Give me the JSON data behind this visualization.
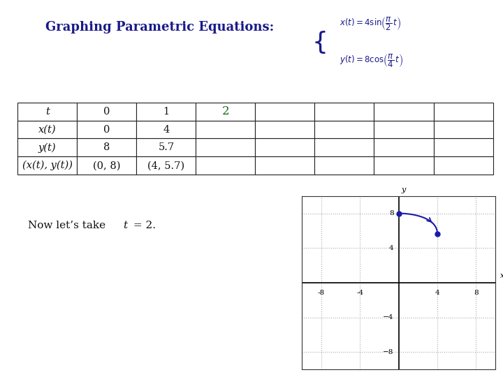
{
  "title": "Graphing Parametric Equations:",
  "title_color": "#1a1a8a",
  "background_color": "#ffffff",
  "table_rows": [
    [
      "t",
      "0",
      "1",
      "2",
      "",
      "",
      "",
      ""
    ],
    [
      "x(t)",
      "0",
      "4",
      "",
      "",
      "",
      "",
      ""
    ],
    [
      "y(t)",
      "8",
      "5.7",
      "",
      "",
      "",
      "",
      ""
    ],
    [
      "(x(t), y(t))",
      "(0, 8)",
      "(4, 5.7)",
      "",
      "",
      "",
      "",
      ""
    ]
  ],
  "note_text": "Now let’s take  t = 2.",
  "graph": {
    "xlim": [
      -10,
      10
    ],
    "ylim": [
      -10,
      10
    ],
    "ticks": [
      -8,
      -4,
      4,
      8
    ],
    "yticks_right": [
      4,
      8
    ],
    "yticks_left_labels": [
      "-4",
      "-8"
    ],
    "points": [
      [
        0,
        8
      ],
      [
        4,
        5.657
      ]
    ],
    "point_color": "#1a1aaa",
    "line_color": "#1a1aaa",
    "grid_color": "#aaaaaa",
    "axis_color": "#000000"
  }
}
